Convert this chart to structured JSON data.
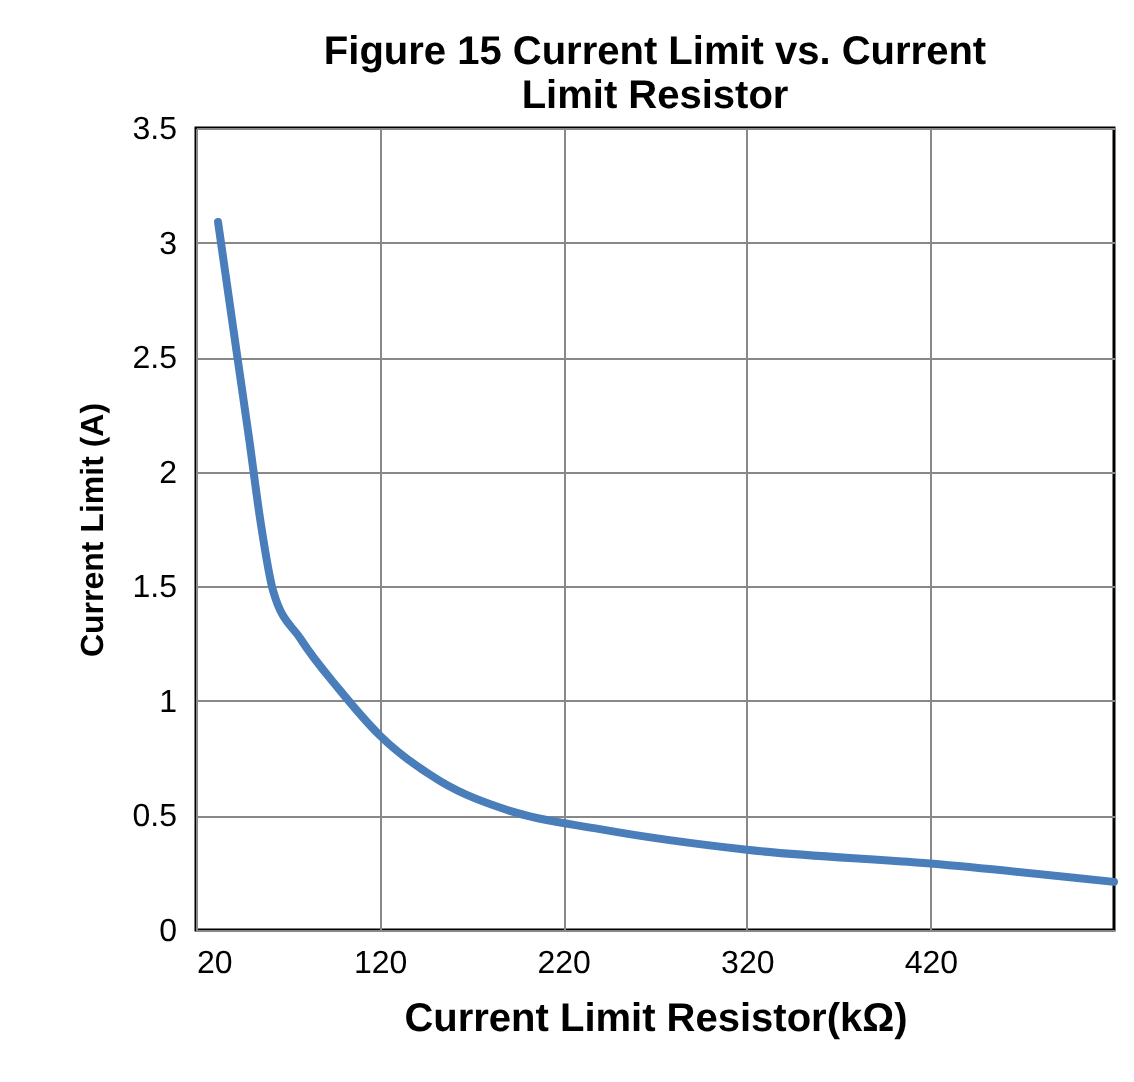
{
  "chart_data": {
    "type": "line",
    "title": "Figure 15 Current Limit vs. Current Limit Resistor",
    "xlabel": "Current Limit Resistor(kΩ)",
    "ylabel": "Current Limit (A)",
    "x": [
      32,
      42,
      49,
      55,
      62,
      77,
      98,
      120,
      153,
      191,
      240,
      320,
      420,
      520
    ],
    "series": [
      {
        "color": "#4a7ebb",
        "values": [
          3.09,
          2.53,
          2.14,
          1.79,
          1.48,
          1.27,
          1.05,
          0.85,
          0.65,
          0.52,
          0.44,
          0.35,
          0.29,
          0.21
        ]
      }
    ],
    "xlim": [
      20,
      520
    ],
    "xticks": [
      20,
      120,
      220,
      320,
      420
    ],
    "ylim": [
      0,
      3.5
    ],
    "yticks": [
      0,
      0.5,
      1,
      1.5,
      2,
      2.5,
      3,
      3.5
    ],
    "grid": true,
    "legend": false,
    "marker": "none",
    "line_style": "solid"
  }
}
